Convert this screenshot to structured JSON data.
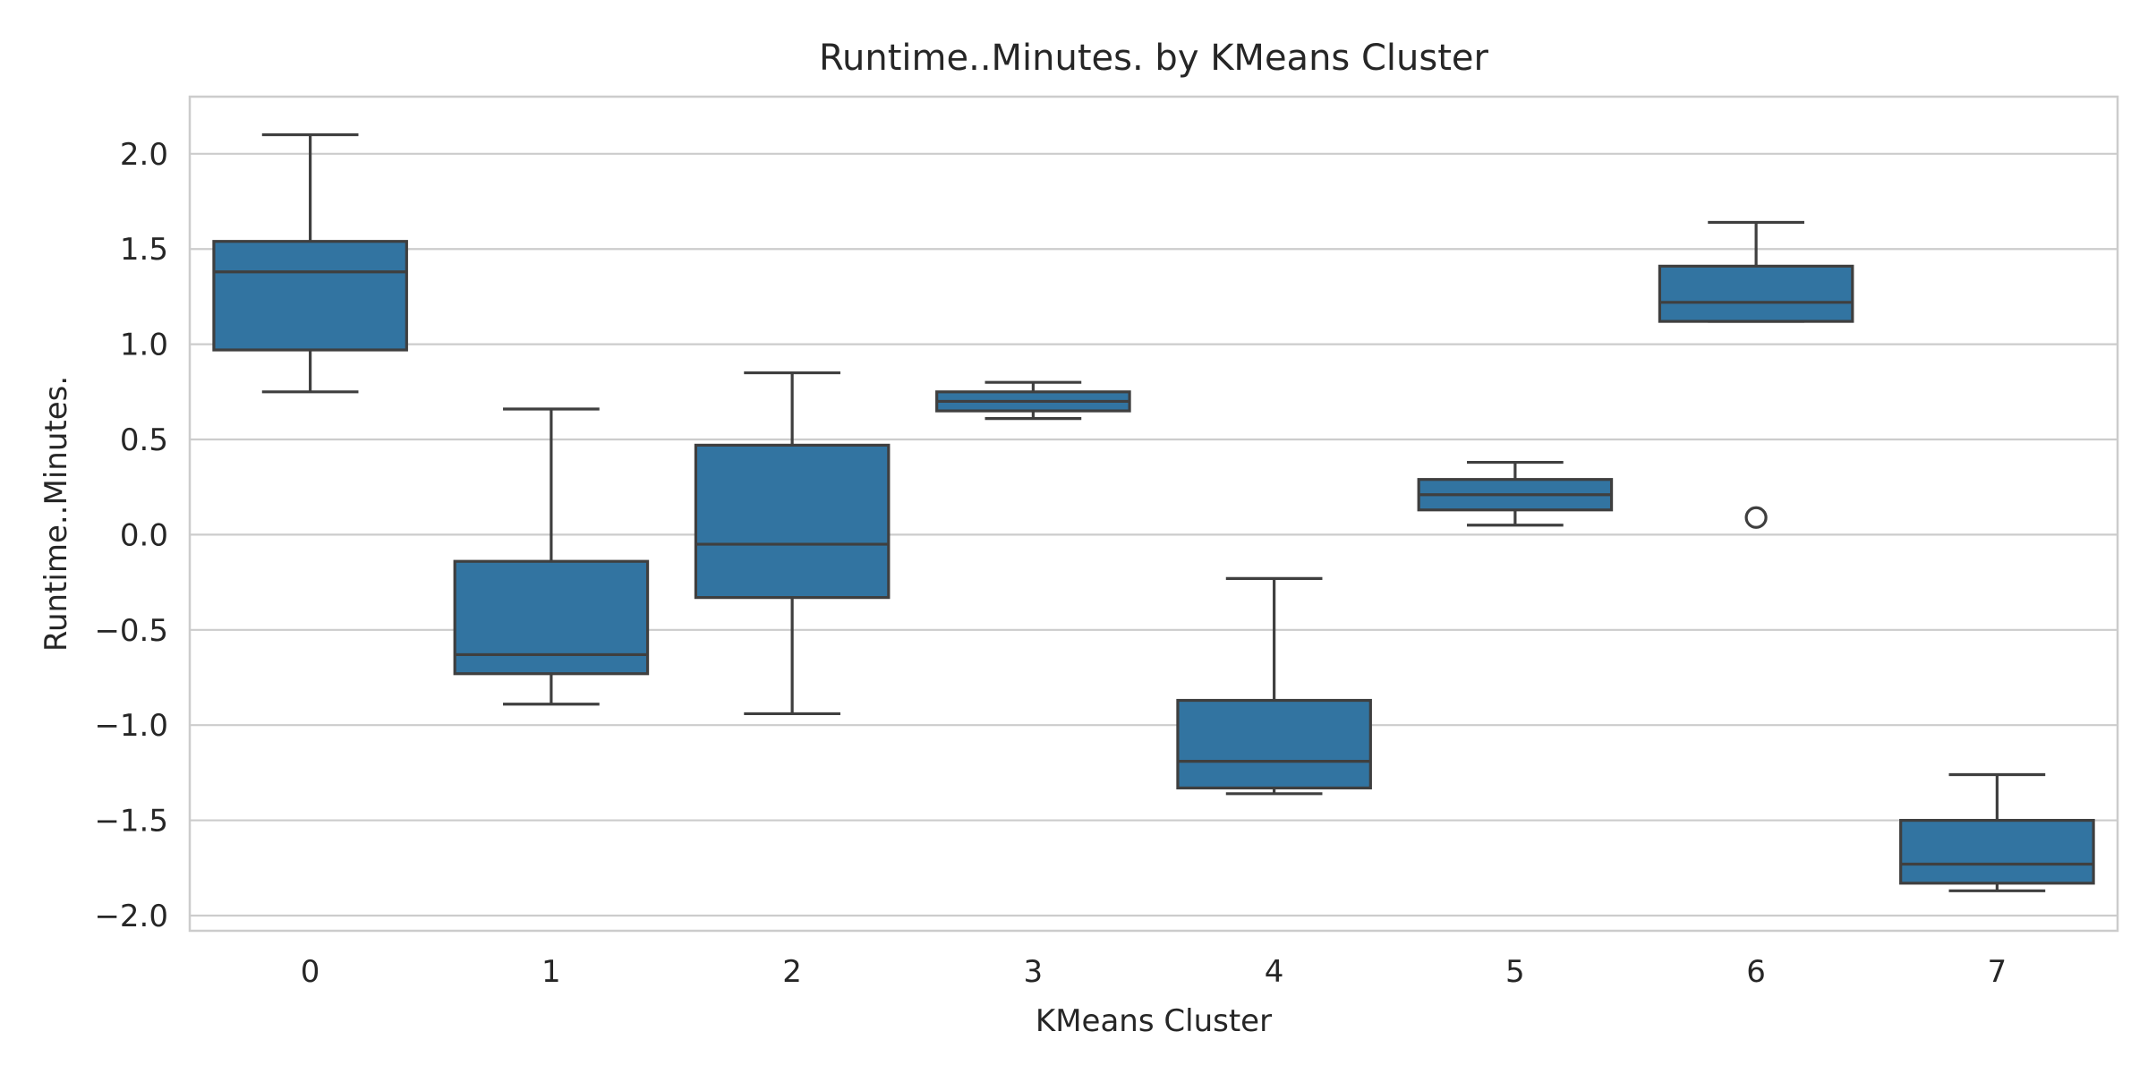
{
  "chart_data": {
    "type": "box",
    "title": "Runtime..Minutes. by KMeans Cluster",
    "xlabel": "KMeans Cluster",
    "ylabel": "Runtime..Minutes.",
    "categories": [
      "0",
      "1",
      "2",
      "3",
      "4",
      "5",
      "6",
      "7"
    ],
    "ylim": [
      -2.08,
      2.3
    ],
    "yticks": [
      2.0,
      1.5,
      1.0,
      0.5,
      0.0,
      -0.5,
      -1.0,
      -1.5,
      -2.0
    ],
    "ytick_labels": [
      "2.0",
      "1.5",
      "1.0",
      "0.5",
      "0.0",
      "−0.5",
      "−1.0",
      "−1.5",
      "−2.0"
    ],
    "grid": true,
    "box_color": "#3274a1",
    "line_color": "#3f3f3f",
    "boxes": [
      {
        "category": "0",
        "whisker_low": 0.75,
        "q1": 0.97,
        "median": 1.38,
        "q3": 1.54,
        "whisker_high": 2.1,
        "outliers": []
      },
      {
        "category": "1",
        "whisker_low": -0.89,
        "q1": -0.73,
        "median": -0.63,
        "q3": -0.14,
        "whisker_high": 0.66,
        "outliers": []
      },
      {
        "category": "2",
        "whisker_low": -0.94,
        "q1": -0.33,
        "median": -0.05,
        "q3": 0.47,
        "whisker_high": 0.85,
        "outliers": []
      },
      {
        "category": "3",
        "whisker_low": 0.61,
        "q1": 0.65,
        "median": 0.7,
        "q3": 0.75,
        "whisker_high": 0.8,
        "outliers": []
      },
      {
        "category": "4",
        "whisker_low": -1.36,
        "q1": -1.33,
        "median": -1.19,
        "q3": -0.87,
        "whisker_high": -0.23,
        "outliers": []
      },
      {
        "category": "5",
        "whisker_low": 0.05,
        "q1": 0.13,
        "median": 0.21,
        "q3": 0.29,
        "whisker_high": 0.38,
        "outliers": []
      },
      {
        "category": "6",
        "whisker_low": 1.12,
        "q1": 1.12,
        "median": 1.22,
        "q3": 1.41,
        "whisker_high": 1.64,
        "outliers": [
          0.09
        ]
      },
      {
        "category": "7",
        "whisker_low": -1.87,
        "q1": -1.83,
        "median": -1.73,
        "q3": -1.5,
        "whisker_high": -1.26,
        "outliers": []
      }
    ]
  }
}
